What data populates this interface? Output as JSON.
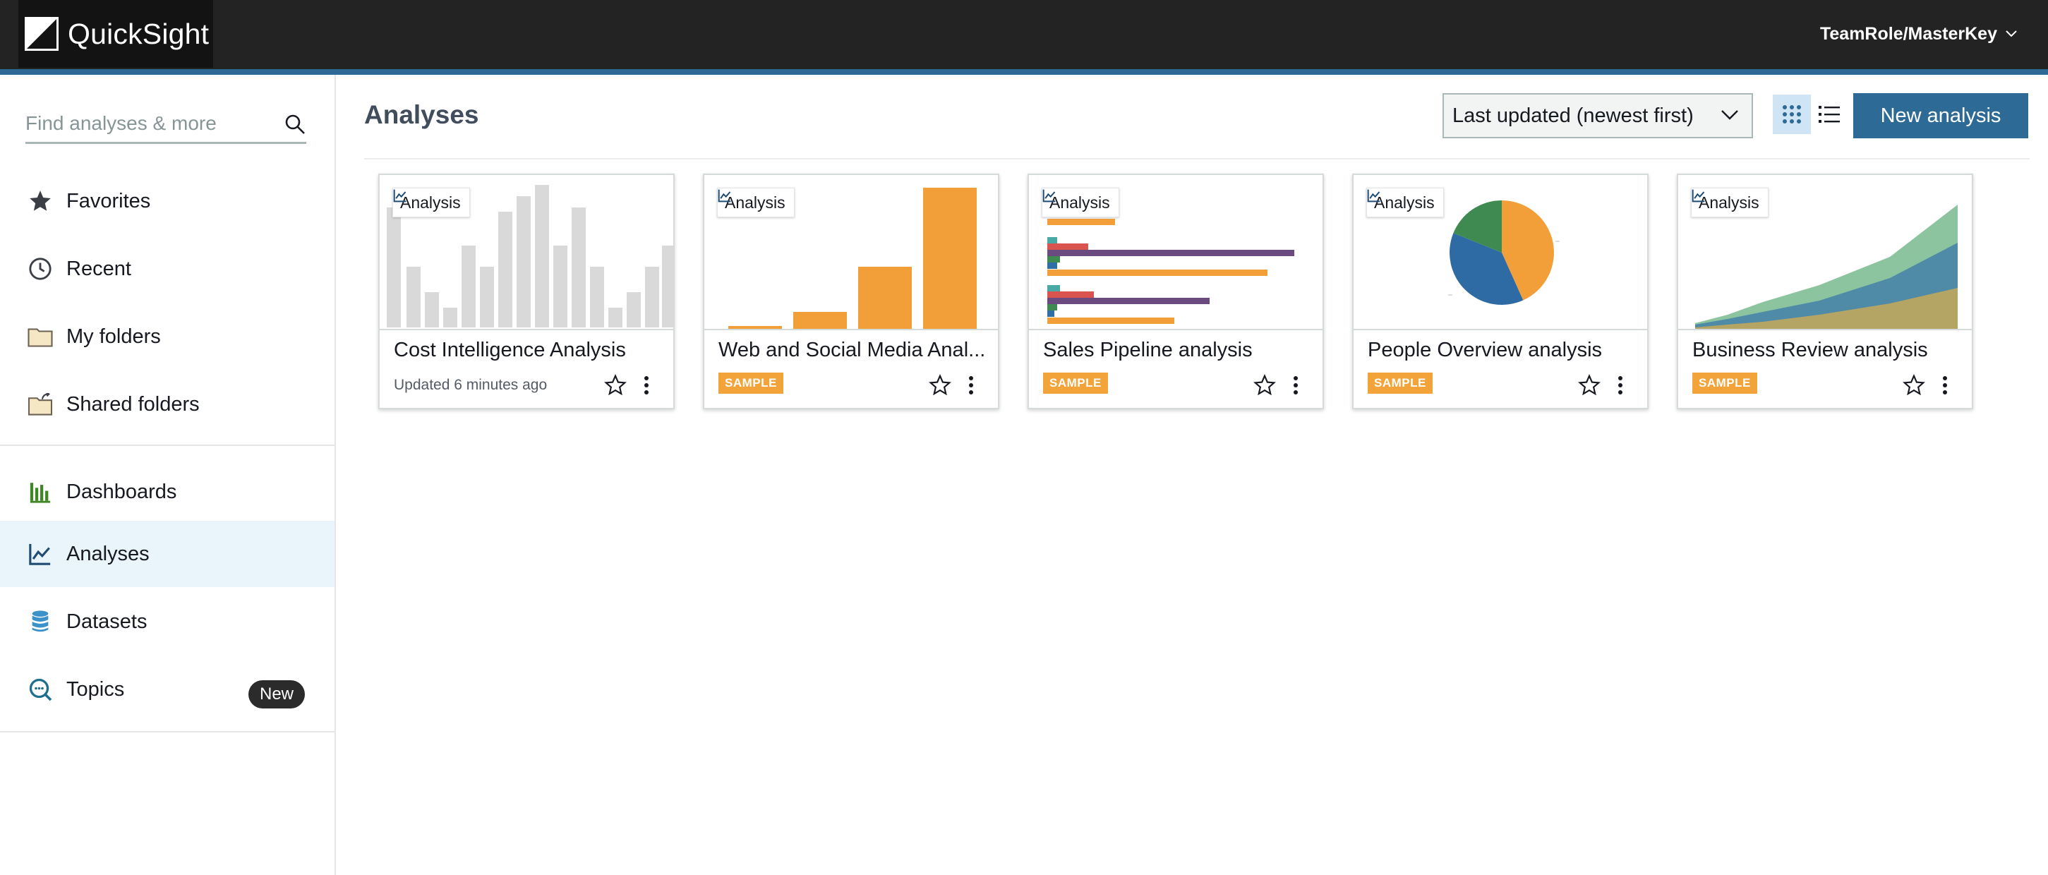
{
  "app": {
    "brand_name": "QuickSight",
    "user_menu_label": "TeamRole/MasterKey"
  },
  "sidebar": {
    "search_placeholder": "Find analyses & more",
    "items": [
      {
        "label": "Favorites",
        "icon": "star-icon"
      },
      {
        "label": "Recent",
        "icon": "clock-icon"
      },
      {
        "label": "My folders",
        "icon": "folder-icon"
      },
      {
        "label": "Shared folders",
        "icon": "shared-folder-icon"
      },
      {
        "label": "Dashboards",
        "icon": "dashboard-icon"
      },
      {
        "label": "Analyses",
        "icon": "analysis-icon",
        "active": true
      },
      {
        "label": "Datasets",
        "icon": "database-icon"
      },
      {
        "label": "Topics",
        "icon": "topics-icon",
        "badge": "New"
      }
    ]
  },
  "main": {
    "title": "Analyses",
    "sort_value": "Last updated (newest first)",
    "new_analysis_label": "New analysis",
    "cards": [
      {
        "title": "Cost Intelligence Analysis",
        "type": "Analysis",
        "subtitle": "Updated 6 minutes ago",
        "thumbnail": "grey-bar-chart"
      },
      {
        "title": "Web and Social Media Anal...",
        "type": "Analysis",
        "badge": "SAMPLE",
        "thumbnail": "orange-bar-chart"
      },
      {
        "title": "Sales Pipeline analysis",
        "type": "Analysis",
        "badge": "SAMPLE",
        "thumbnail": "horizontal-bar-chart"
      },
      {
        "title": "People Overview analysis",
        "type": "Analysis",
        "badge": "SAMPLE",
        "thumbnail": "pie-chart"
      },
      {
        "title": "Business Review analysis",
        "type": "Analysis",
        "badge": "SAMPLE",
        "thumbnail": "area-chart"
      }
    ]
  },
  "colors": {
    "accent": "#2e6a96",
    "sample_badge": "#f2a33a",
    "topbar": "#232323",
    "active_nav": "#eaf5fb"
  }
}
